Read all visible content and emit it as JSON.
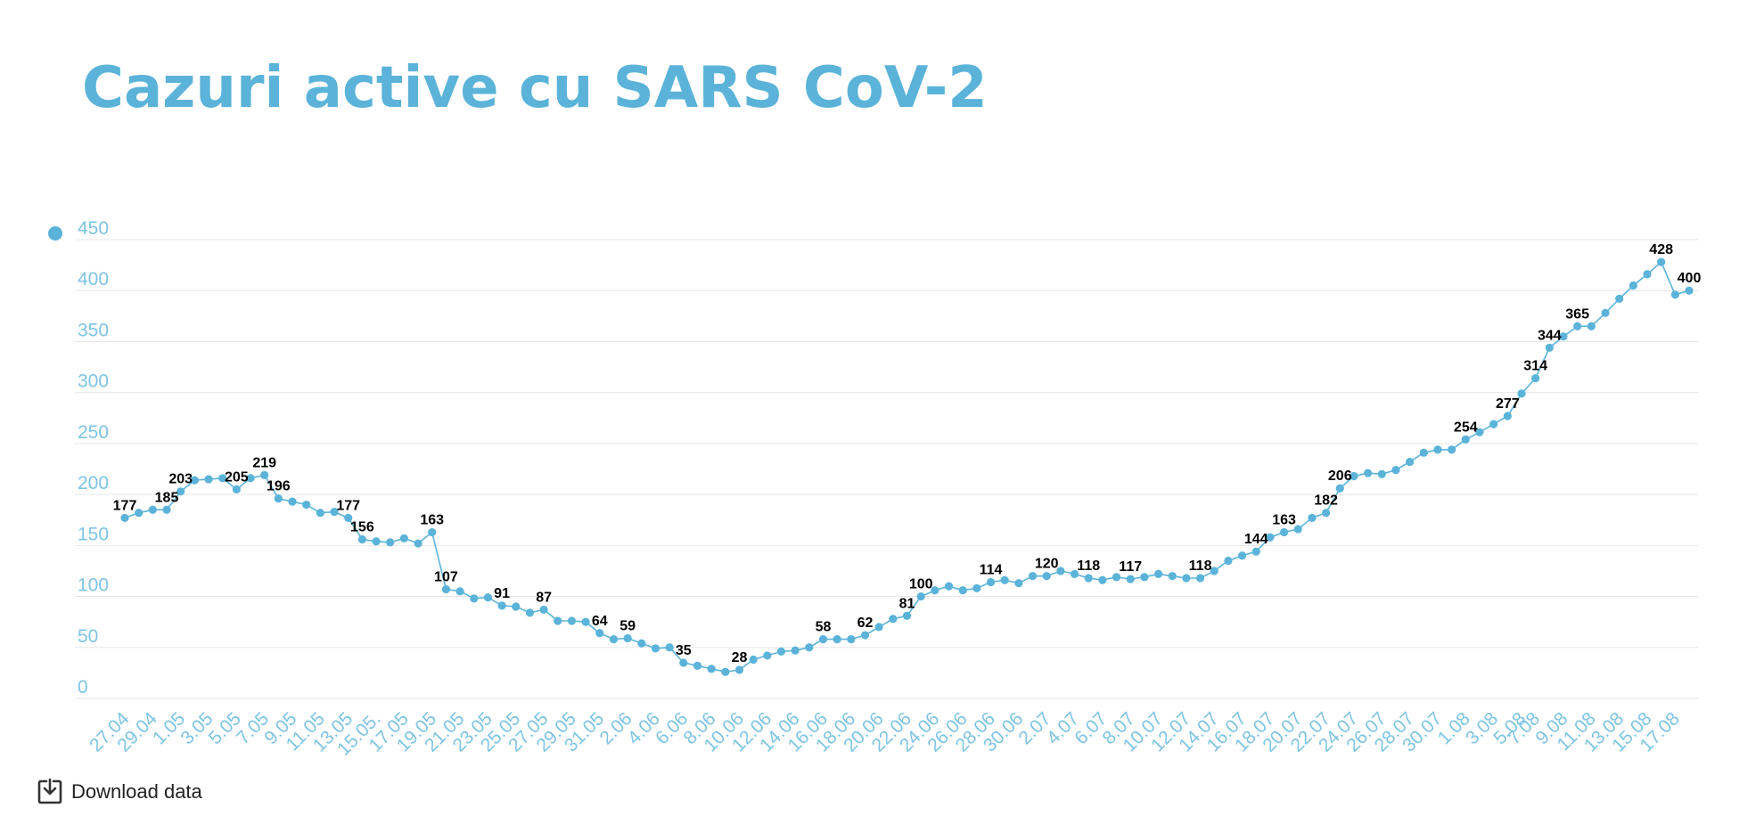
{
  "title": "Cazuri active cu SARS CoV-2",
  "download": {
    "label": "Download data",
    "icon": "download-icon"
  },
  "colors": {
    "accent": "#5bb3d9",
    "grid": "#e6e6e6",
    "tick": "#7ec4e3",
    "label": "#000000"
  },
  "chart_data": {
    "type": "line",
    "title": "Cazuri active cu SARS CoV-2",
    "xlabel": "",
    "ylabel": "",
    "ylim": [
      0,
      450
    ],
    "yticks": [
      0,
      50,
      100,
      150,
      200,
      250,
      300,
      350,
      400,
      450
    ],
    "grid": true,
    "legend": "top-left",
    "series": [
      {
        "values": [
          177,
          182,
          185,
          185,
          203,
          214,
          215,
          216,
          205,
          216,
          219,
          196,
          193,
          190,
          182,
          183,
          177,
          156,
          154,
          153,
          157,
          152,
          163,
          107,
          105,
          98,
          99,
          91,
          90,
          84,
          87,
          76,
          76,
          75,
          64,
          58,
          59,
          54,
          49,
          50,
          35,
          32,
          29,
          26,
          28,
          38,
          42,
          46,
          47,
          50,
          58,
          58,
          58,
          62,
          70,
          78,
          81,
          100,
          106,
          110,
          106,
          108,
          114,
          116,
          113,
          120,
          120,
          125,
          122,
          118,
          116,
          119,
          117,
          119,
          122,
          120,
          118,
          118,
          125,
          135,
          140,
          144,
          158,
          163,
          166,
          177,
          182,
          206,
          218,
          221,
          220,
          224,
          232,
          241,
          244,
          244,
          254,
          261,
          269,
          277,
          299,
          314,
          344,
          355,
          365,
          365,
          378,
          392,
          405,
          416,
          428,
          396,
          400
        ],
        "data_labels": [
          {
            "i": 0,
            "v": 177
          },
          {
            "i": 3,
            "v": 185
          },
          {
            "i": 4,
            "v": 203
          },
          {
            "i": 8,
            "v": 205
          },
          {
            "i": 10,
            "v": 219
          },
          {
            "i": 11,
            "v": 196
          },
          {
            "i": 16,
            "v": 177
          },
          {
            "i": 17,
            "v": 156
          },
          {
            "i": 22,
            "v": 163
          },
          {
            "i": 23,
            "v": 107
          },
          {
            "i": 27,
            "v": 91
          },
          {
            "i": 30,
            "v": 87
          },
          {
            "i": 34,
            "v": 64
          },
          {
            "i": 36,
            "v": 59
          },
          {
            "i": 40,
            "v": 35
          },
          {
            "i": 44,
            "v": 28
          },
          {
            "i": 50,
            "v": 58
          },
          {
            "i": 53,
            "v": 62
          },
          {
            "i": 56,
            "v": 81
          },
          {
            "i": 57,
            "v": 100
          },
          {
            "i": 62,
            "v": 114
          },
          {
            "i": 66,
            "v": 120
          },
          {
            "i": 69,
            "v": 118
          },
          {
            "i": 72,
            "v": 117
          },
          {
            "i": 77,
            "v": 118
          },
          {
            "i": 81,
            "v": 144
          },
          {
            "i": 83,
            "v": 163
          },
          {
            "i": 86,
            "v": 182
          },
          {
            "i": 87,
            "v": 206
          },
          {
            "i": 96,
            "v": 254
          },
          {
            "i": 99,
            "v": 277
          },
          {
            "i": 101,
            "v": 314
          },
          {
            "i": 102,
            "v": 344
          },
          {
            "i": 104,
            "v": 365
          },
          {
            "i": 110,
            "v": 428
          },
          {
            "i": 112,
            "v": 400
          }
        ]
      }
    ],
    "x_ticks": [
      "27.04",
      "29.04",
      "1.05",
      "3.05",
      "5.05",
      "7.05",
      "9.05",
      "11.05",
      "13.05",
      "15.05.",
      "17.05",
      "19.05",
      "21.05",
      "23.05",
      "25.05",
      "27.05",
      "29.05",
      "31.05",
      "2.06",
      "4.06",
      "6.06",
      "8.06",
      "10.06",
      "12.06",
      "14.06",
      "16.06",
      "18.06",
      "20.06",
      "22.06",
      "24.06",
      "26.06",
      "28.06",
      "30.06",
      "2.07",
      "4.07",
      "6.07",
      "8.07",
      "10.07",
      "12.07",
      "14.07",
      "16.07",
      "18.07",
      "20.07",
      "22.07",
      "24.07",
      "26.07",
      "28.07",
      "30.07",
      "1.08",
      "3.08",
      "5.08",
      "7.08",
      "9.08",
      "11.08",
      "13.08",
      "15.08",
      "17.08"
    ],
    "x_tick_indices": [
      0,
      2,
      4,
      6,
      8,
      10,
      12,
      14,
      16,
      18,
      20,
      22,
      24,
      26,
      28,
      30,
      32,
      34,
      36,
      38,
      40,
      42,
      44,
      46,
      48,
      50,
      52,
      54,
      56,
      58,
      60,
      62,
      64,
      66,
      68,
      70,
      72,
      74,
      76,
      78,
      80,
      82,
      84,
      86,
      88,
      90,
      92,
      94,
      96,
      98,
      100,
      101,
      103,
      105,
      107,
      109,
      111
    ]
  }
}
